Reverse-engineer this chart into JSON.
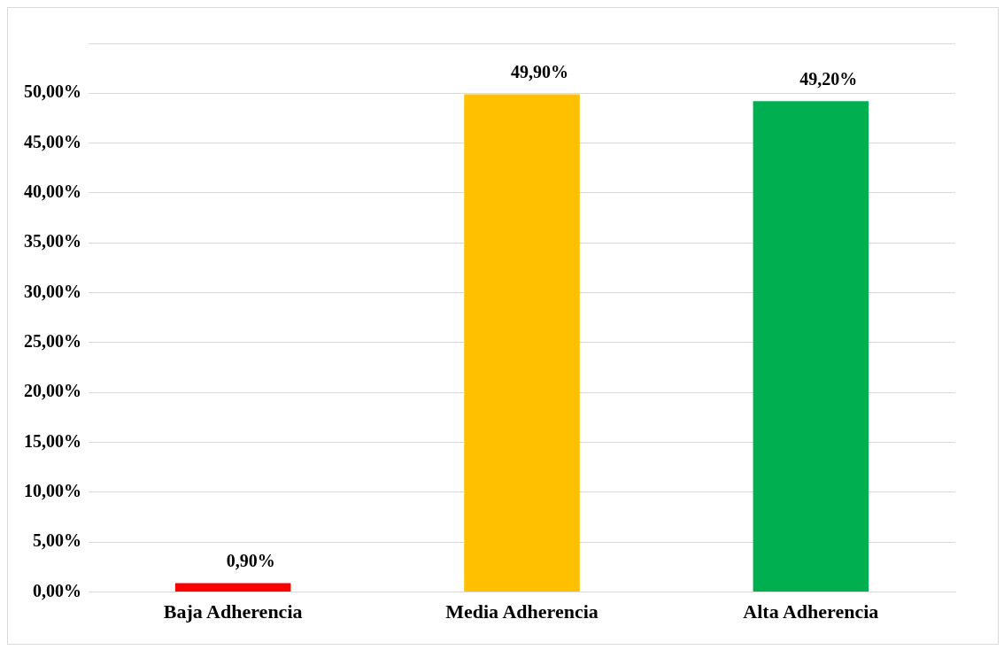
{
  "chart_data": {
    "type": "bar",
    "categories": [
      "Baja Adherencia",
      "Media Adherencia",
      "Alta Adherencia"
    ],
    "values": [
      0.9,
      49.9,
      49.2
    ],
    "colors": [
      "#ff0000",
      "#ffc000",
      "#00b050"
    ],
    "value_labels": [
      "0,90%",
      "49,90%",
      "49,20%"
    ],
    "ylim": [
      0,
      55
    ],
    "yticks": [
      {
        "value": 0,
        "label": "0,00%"
      },
      {
        "value": 5,
        "label": "5,00%"
      },
      {
        "value": 10,
        "label": "10,00%"
      },
      {
        "value": 15,
        "label": "15,00%"
      },
      {
        "value": 20,
        "label": "20,00%"
      },
      {
        "value": 25,
        "label": "25,00%"
      },
      {
        "value": 30,
        "label": "30,00%"
      },
      {
        "value": 35,
        "label": "35,00%"
      },
      {
        "value": 40,
        "label": "40,00%"
      },
      {
        "value": 45,
        "label": "45,00%"
      },
      {
        "value": 50,
        "label": "50,00%"
      },
      {
        "value": 55,
        "label": null
      }
    ],
    "grid": "y",
    "legend": false
  }
}
